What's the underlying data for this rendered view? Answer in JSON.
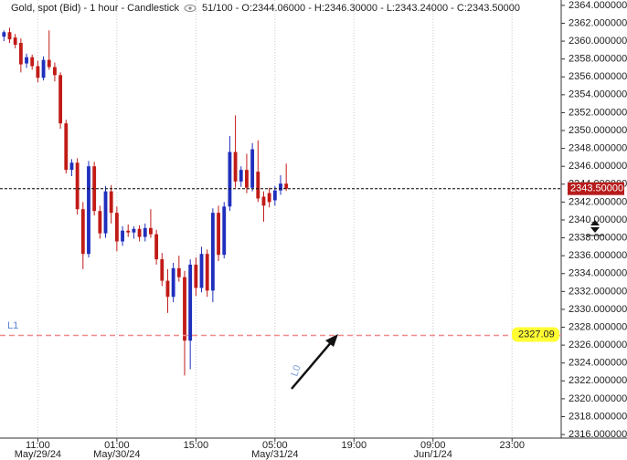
{
  "chart_data": {
    "type": "candlestick",
    "title": "Gold, spot (Bid) - 1 hour - Candlestick",
    "info": "51/100 - O:2344.06000 - H:2346.30000 - L:2343.24000 - C:2343.50000",
    "up_color": "#1f2fbd",
    "down_color": "#c11b17",
    "open": [
      2360.5,
      2361,
      2360.4,
      2359.8,
      2357.5,
      2358.2,
      2357.2,
      2355.9,
      2357.9,
      2357.1,
      2356.2,
      2350.8,
      2345.6,
      2346.4,
      2341.2,
      2336.2,
      2346,
      2341,
      2338.5,
      2343.2,
      2340.8,
      2337.6,
      2338.8,
      2338.6,
      2339,
      2338.1,
      2339.1,
      2338.4,
      2335.6,
      2333.2,
      2331.4,
      2334.6,
      2333.6,
      2326.5,
      2335,
      2332.4,
      2336.2,
      2332.1,
      2340.8,
      2336.1,
      2341.5,
      2347.6,
      2344.3,
      2345.6,
      2343.6,
      2345.4,
      2342.6,
      2343,
      2342.2,
      2343.3,
      2344.06
    ],
    "high": [
      2361.2,
      2361.5,
      2360.8,
      2360.3,
      2358.6,
      2358.5,
      2357.8,
      2358.3,
      2361.2,
      2357.6,
      2356.5,
      2351.2,
      2346.8,
      2346.9,
      2342,
      2346.6,
      2346.5,
      2341.6,
      2343.8,
      2343.9,
      2341.5,
      2339.3,
      2339.5,
      2339.3,
      2339.4,
      2339.6,
      2341.2,
      2338.9,
      2336.3,
      2334.5,
      2335.2,
      2336,
      2334.3,
      2335.6,
      2335.8,
      2337,
      2336.7,
      2341.3,
      2341.6,
      2342,
      2349.4,
      2351.7,
      2346,
      2347.4,
      2348.6,
      2348.9,
      2343.2,
      2343.6,
      2343.8,
      2345,
      2346.3
    ],
    "low": [
      2360,
      2359.8,
      2359.2,
      2356.5,
      2357,
      2356.8,
      2355.4,
      2355.6,
      2356.8,
      2355.5,
      2350.2,
      2345.2,
      2344.9,
      2340.6,
      2334.5,
      2335.8,
      2340.5,
      2337.9,
      2338,
      2339.6,
      2336.5,
      2337.1,
      2338.1,
      2337.9,
      2337.6,
      2337.6,
      2338,
      2335,
      2332.6,
      2329.6,
      2330.8,
      2333.1,
      2322.6,
      2323.3,
      2331.5,
      2331.9,
      2331.4,
      2330.8,
      2335.4,
      2335.7,
      2341,
      2343.6,
      2343.7,
      2343,
      2343.2,
      2342,
      2339.8,
      2341.4,
      2341.6,
      2342.8,
      2343.24
    ],
    "close": [
      2361,
      2360.2,
      2359.6,
      2357.4,
      2358.2,
      2357.2,
      2355.9,
      2357.9,
      2357.1,
      2356.2,
      2350.8,
      2345.6,
      2346.4,
      2341.2,
      2336.2,
      2346,
      2341,
      2338.5,
      2343.2,
      2340.8,
      2337.6,
      2338.8,
      2338.6,
      2339,
      2338.1,
      2339.1,
      2338.4,
      2335.6,
      2333.2,
      2331.4,
      2334.6,
      2333.6,
      2326.5,
      2335,
      2332.4,
      2336.2,
      2332.1,
      2340.8,
      2336.1,
      2341.5,
      2347.6,
      2344.3,
      2345.6,
      2343.6,
      2347.9,
      2342.4,
      2341.6,
      2342,
      2343.3,
      2344.06,
      2343.5
    ],
    "xlim": [
      -0.7,
      98.7
    ],
    "xticks": [
      {
        "value": 6,
        "label": "11:00"
      },
      {
        "value": 20,
        "label": "01:00"
      },
      {
        "value": 34,
        "label": "15:00"
      },
      {
        "value": 48,
        "label": "05:00"
      },
      {
        "value": 62,
        "label": "19:00"
      },
      {
        "value": 76,
        "label": "09:00"
      },
      {
        "value": 90,
        "label": "23:00"
      }
    ],
    "xtick_dates": [
      {
        "value": 6,
        "label": "May/29/24"
      },
      {
        "value": 20,
        "label": "May/30/24"
      },
      {
        "value": 48,
        "label": "May/31/24"
      },
      {
        "value": 76,
        "label": "Jun/1/24"
      }
    ],
    "ylim": [
      2315.6,
      2364.6
    ],
    "yticks": [
      {
        "value": 2316,
        "label": "2316.000000"
      },
      {
        "value": 2318,
        "label": "2318.000000"
      },
      {
        "value": 2320,
        "label": "2320.000000"
      },
      {
        "value": 2322,
        "label": "2322.000000"
      },
      {
        "value": 2324,
        "label": "2324.000000"
      },
      {
        "value": 2326,
        "label": "2326.000000"
      },
      {
        "value": 2328,
        "label": "2328.000000"
      },
      {
        "value": 2330,
        "label": "2330.000000"
      },
      {
        "value": 2332,
        "label": "2332.000000"
      },
      {
        "value": 2334,
        "label": "2334.000000"
      },
      {
        "value": 2336,
        "label": "2336.000000"
      },
      {
        "value": 2338,
        "label": "2338.000000"
      },
      {
        "value": 2340,
        "label": "2340.000000"
      },
      {
        "value": 2342,
        "label": "2342.000000"
      },
      {
        "value": 2344,
        "label": "2344.000000"
      },
      {
        "value": 2346,
        "label": "2346.000000"
      },
      {
        "value": 2348,
        "label": "2348.000000"
      },
      {
        "value": 2350,
        "label": "2350.000000"
      },
      {
        "value": 2352,
        "label": "2352.000000"
      },
      {
        "value": 2354,
        "label": "2354.000000"
      },
      {
        "value": 2356,
        "label": "2356.000000"
      },
      {
        "value": 2358,
        "label": "2358.000000"
      },
      {
        "value": 2360,
        "label": "2360.000000"
      },
      {
        "value": 2362,
        "label": "2362.000000"
      },
      {
        "value": 2364,
        "label": "2364.000000"
      }
    ],
    "current_price": {
      "value": 2343.5,
      "label": "2343.50000",
      "color": "#b71c1c"
    },
    "levels": [
      {
        "name": "L1",
        "value": 2327.09,
        "label": "2327.09",
        "color": "#f08a8a",
        "label_color": "#ffff33"
      }
    ],
    "annotation": "L0"
  }
}
